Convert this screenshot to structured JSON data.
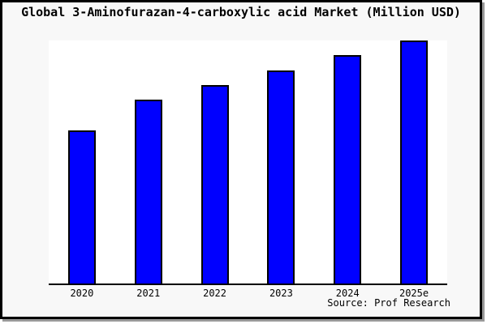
{
  "title": "Global 3-Aminofurazan-4-carboxylic acid Market (Million USD)",
  "source_note": "Source: Prof Research",
  "colors": {
    "bar_fill": "#0000ff",
    "bar_border": "#000000",
    "frame_background": "#f8f8f8",
    "plot_background": "#ffffff",
    "frame_border": "#000000",
    "frame_shadow": "#999999"
  },
  "chart_data": {
    "type": "bar",
    "title": "Global 3-Aminofurazan-4-carboxylic acid Market (Million USD)",
    "categories": [
      "2020",
      "2021",
      "2022",
      "2023",
      "2024",
      "2025e"
    ],
    "values": [
      62.9,
      75.5,
      81.7,
      87.8,
      93.9,
      100
    ],
    "values_unit": "relative height, percent of tallest bar (no numeric y-axis labels shown)",
    "xlabel": "",
    "ylabel": "",
    "ylim": [
      0,
      100
    ],
    "grid": false,
    "legend": false,
    "y_axis_ticks_visible": false,
    "bar_color": "#0000ff",
    "source_note": "Source: Prof Research"
  }
}
